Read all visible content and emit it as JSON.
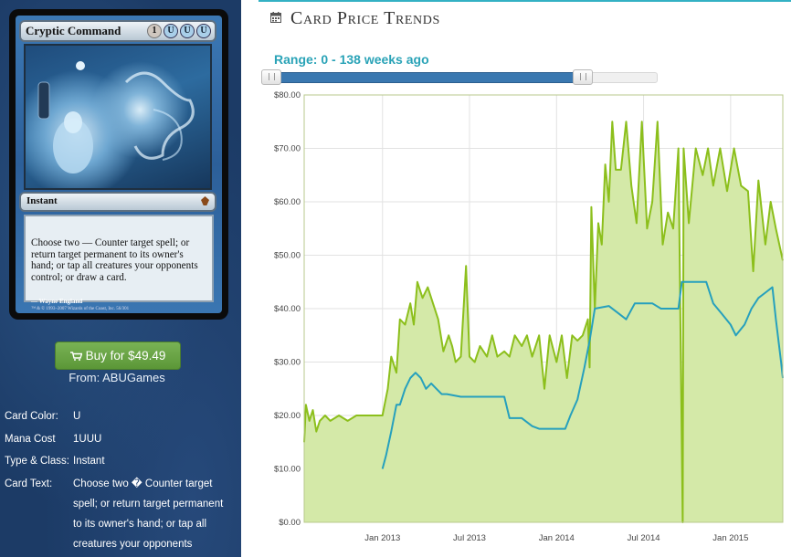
{
  "card": {
    "name": "Cryptic Command",
    "mana_cost_symbols": [
      "1",
      "U",
      "U",
      "U"
    ],
    "type_line": "Instant",
    "rules_text": "Choose two — Counter target spell; or return target permanent to its owner's hand; or tap all creatures your opponents control; or draw a card.",
    "artist": "Wayne England",
    "copyright": "™ & © 1993–2007 Wizards of the Coast, Inc. 56/301"
  },
  "buy": {
    "label": "Buy for $49.49",
    "icon": "shopping-cart-icon",
    "color": "#6aa646",
    "from": "From: ABUGames"
  },
  "info": [
    {
      "label": "Card Color:",
      "value": "U"
    },
    {
      "label": "Mana Cost",
      "value": "1UUU"
    },
    {
      "label": "Type & Class:",
      "value": "Instant"
    },
    {
      "label": "Card Text:",
      "value": "Choose two � Counter target spell; or return target permanent to its owner's hand; or tap all creatures your opponents"
    }
  ],
  "section": {
    "title": "Card Price Trends",
    "icon": "calendar-icon",
    "accent": "#33b1c4"
  },
  "range": {
    "label": "Range: 0 - 138 weeks ago",
    "start_fraction": 0.0,
    "end_fraction": 0.8
  },
  "chart_data": {
    "type": "line",
    "ylim": [
      0,
      80
    ],
    "y_ticks": [
      "$0.00",
      "$10.00",
      "$20.00",
      "$30.00",
      "$40.00",
      "$50.00",
      "$60.00",
      "$70.00",
      "$80.00"
    ],
    "x_ticks": [
      "Jan 2013",
      "Jul 2013",
      "Jan 2014",
      "Jul 2014",
      "Jan 2015"
    ],
    "x_tick_positions": [
      2013.0,
      2013.5,
      2014.0,
      2014.5,
      2015.0
    ],
    "xlim": [
      2012.55,
      2015.3
    ],
    "grid": true,
    "series": [
      {
        "color": "#8cbf1c",
        "fill": "#d4e9a8",
        "points": [
          [
            2012.55,
            15
          ],
          [
            2012.56,
            22
          ],
          [
            2012.58,
            19
          ],
          [
            2012.6,
            21
          ],
          [
            2012.62,
            17
          ],
          [
            2012.64,
            19
          ],
          [
            2012.67,
            20
          ],
          [
            2012.7,
            19
          ],
          [
            2012.75,
            20
          ],
          [
            2012.8,
            19
          ],
          [
            2012.85,
            20
          ],
          [
            2012.9,
            20
          ],
          [
            2012.95,
            20
          ],
          [
            2013.0,
            20
          ],
          [
            2013.03,
            25
          ],
          [
            2013.05,
            31
          ],
          [
            2013.08,
            28
          ],
          [
            2013.1,
            38
          ],
          [
            2013.13,
            37
          ],
          [
            2013.16,
            41
          ],
          [
            2013.18,
            37
          ],
          [
            2013.2,
            45
          ],
          [
            2013.23,
            42
          ],
          [
            2013.26,
            44
          ],
          [
            2013.29,
            41
          ],
          [
            2013.32,
            38
          ],
          [
            2013.35,
            32
          ],
          [
            2013.38,
            35
          ],
          [
            2013.4,
            33
          ],
          [
            2013.42,
            30
          ],
          [
            2013.45,
            31
          ],
          [
            2013.48,
            48
          ],
          [
            2013.5,
            31
          ],
          [
            2013.53,
            30
          ],
          [
            2013.56,
            33
          ],
          [
            2013.6,
            31
          ],
          [
            2013.63,
            35
          ],
          [
            2013.66,
            31
          ],
          [
            2013.7,
            32
          ],
          [
            2013.73,
            31
          ],
          [
            2013.76,
            35
          ],
          [
            2013.8,
            33
          ],
          [
            2013.83,
            35
          ],
          [
            2013.86,
            31
          ],
          [
            2013.9,
            35
          ],
          [
            2013.93,
            25
          ],
          [
            2013.96,
            35
          ],
          [
            2014.0,
            30
          ],
          [
            2014.03,
            35
          ],
          [
            2014.06,
            27
          ],
          [
            2014.09,
            35
          ],
          [
            2014.12,
            34
          ],
          [
            2014.15,
            35
          ],
          [
            2014.18,
            38
          ],
          [
            2014.19,
            29
          ],
          [
            2014.2,
            59
          ],
          [
            2014.22,
            40
          ],
          [
            2014.24,
            56
          ],
          [
            2014.26,
            52
          ],
          [
            2014.28,
            67
          ],
          [
            2014.3,
            60
          ],
          [
            2014.32,
            75
          ],
          [
            2014.34,
            66
          ],
          [
            2014.37,
            66
          ],
          [
            2014.4,
            75
          ],
          [
            2014.43,
            63
          ],
          [
            2014.46,
            56
          ],
          [
            2014.49,
            75
          ],
          [
            2014.52,
            55
          ],
          [
            2014.55,
            60
          ],
          [
            2014.58,
            75
          ],
          [
            2014.61,
            52
          ],
          [
            2014.64,
            58
          ],
          [
            2014.67,
            55
          ],
          [
            2014.7,
            70
          ],
          [
            2014.725,
            0
          ],
          [
            2014.73,
            70
          ],
          [
            2014.76,
            56
          ],
          [
            2014.8,
            70
          ],
          [
            2014.84,
            65
          ],
          [
            2014.87,
            70
          ],
          [
            2014.9,
            63
          ],
          [
            2014.94,
            70
          ],
          [
            2014.98,
            62
          ],
          [
            2015.02,
            70
          ],
          [
            2015.06,
            63
          ],
          [
            2015.1,
            62
          ],
          [
            2015.13,
            47
          ],
          [
            2015.16,
            64
          ],
          [
            2015.2,
            52
          ],
          [
            2015.23,
            60
          ],
          [
            2015.26,
            55
          ],
          [
            2015.3,
            49
          ]
        ]
      },
      {
        "color": "#26a0bd",
        "points": [
          [
            2013.0,
            10
          ],
          [
            2013.02,
            12.5
          ],
          [
            2013.05,
            17
          ],
          [
            2013.08,
            22
          ],
          [
            2013.1,
            22
          ],
          [
            2013.13,
            25
          ],
          [
            2013.16,
            27
          ],
          [
            2013.19,
            28
          ],
          [
            2013.22,
            27
          ],
          [
            2013.25,
            25
          ],
          [
            2013.28,
            26
          ],
          [
            2013.31,
            25
          ],
          [
            2013.34,
            24
          ],
          [
            2013.37,
            24
          ],
          [
            2013.45,
            23.5
          ],
          [
            2013.55,
            23.5
          ],
          [
            2013.6,
            23.5
          ],
          [
            2013.7,
            23.5
          ],
          [
            2013.73,
            19.5
          ],
          [
            2013.8,
            19.5
          ],
          [
            2013.86,
            18
          ],
          [
            2013.9,
            17.5
          ],
          [
            2013.95,
            17.5
          ],
          [
            2014.05,
            17.5
          ],
          [
            2014.08,
            20
          ],
          [
            2014.12,
            23
          ],
          [
            2014.16,
            29
          ],
          [
            2014.19,
            34
          ],
          [
            2014.22,
            40
          ],
          [
            2014.3,
            40.5
          ],
          [
            2014.36,
            39
          ],
          [
            2014.4,
            38
          ],
          [
            2014.45,
            41
          ],
          [
            2014.55,
            41
          ],
          [
            2014.6,
            40
          ],
          [
            2014.7,
            40
          ],
          [
            2014.72,
            45
          ],
          [
            2014.8,
            45
          ],
          [
            2014.86,
            45
          ],
          [
            2014.9,
            41
          ],
          [
            2014.95,
            39
          ],
          [
            2015.0,
            37
          ],
          [
            2015.03,
            35
          ],
          [
            2015.08,
            37
          ],
          [
            2015.12,
            40
          ],
          [
            2015.16,
            42
          ],
          [
            2015.2,
            43
          ],
          [
            2015.24,
            44
          ],
          [
            2015.26,
            38
          ],
          [
            2015.29,
            30
          ],
          [
            2015.3,
            27
          ]
        ]
      }
    ]
  }
}
